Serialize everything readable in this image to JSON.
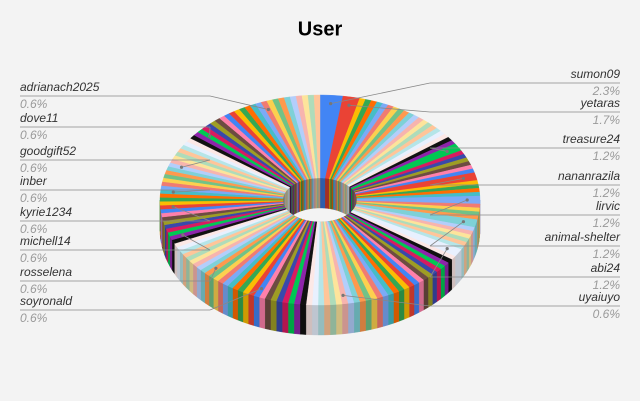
{
  "chart_data": {
    "type": "pie",
    "title": "User",
    "categories": [
      "sumon09",
      "yetaras",
      null,
      null,
      null,
      null,
      null,
      null,
      null,
      null,
      null,
      null,
      null,
      null,
      null,
      null,
      null,
      null,
      null,
      null,
      null,
      null,
      "treasure24",
      null,
      null,
      null,
      null,
      null,
      null,
      "nananrazila",
      null,
      null,
      null,
      null,
      "lirvic",
      null,
      null,
      null,
      null,
      "animal-shelter",
      null,
      null,
      null,
      null,
      null,
      null,
      "abi24",
      null,
      null,
      null,
      null,
      null,
      null,
      null,
      null,
      null,
      null,
      null,
      null,
      null,
      null,
      null,
      null,
      null,
      null,
      null,
      null,
      null,
      null,
      "uyaiuyo",
      null,
      null,
      null,
      null,
      null,
      null,
      null,
      null,
      null,
      null,
      null,
      null,
      null,
      null,
      "soyronald",
      null,
      null,
      null,
      null,
      null,
      null,
      null,
      null,
      null,
      "rosselena",
      null,
      null,
      null,
      null,
      null,
      null,
      null,
      null,
      null,
      null,
      "michell14",
      null,
      null,
      null,
      null,
      null,
      null,
      null,
      "kyrie1234",
      null,
      null,
      null,
      "inber",
      null,
      null,
      null,
      null,
      null,
      null,
      "goodgift52",
      null,
      null,
      null,
      null,
      null,
      null,
      null,
      null,
      null,
      "dove11",
      null,
      null,
      null,
      null,
      null,
      null,
      null,
      null,
      null,
      null,
      null,
      null,
      "adrianach2025",
      null,
      null,
      null,
      null,
      null,
      null,
      null,
      null,
      null
    ],
    "values": [
      2.3,
      1.7,
      0.6,
      0.6,
      0.6,
      0.6,
      0.6,
      0.6,
      0.6,
      0.6,
      0.6,
      0.6,
      0.6,
      0.6,
      0.6,
      0.6,
      0.6,
      0.6,
      0.6,
      0.6,
      0.6,
      0.6,
      1.2,
      0.6,
      0.6,
      0.6,
      0.6,
      0.6,
      0.6,
      1.2,
      0.6,
      0.6,
      0.6,
      0.6,
      1.2,
      0.6,
      0.6,
      0.6,
      0.6,
      1.2,
      0.6,
      0.6,
      0.6,
      0.6,
      0.6,
      0.6,
      1.2,
      0.6,
      0.6,
      0.6,
      0.6,
      0.6,
      0.6,
      0.6,
      0.6,
      0.6,
      0.6,
      0.6,
      0.6,
      0.6,
      0.6,
      0.6,
      0.6,
      0.6,
      0.6,
      0.6,
      0.6,
      0.6,
      0.6,
      0.6,
      0.6,
      0.6,
      0.6,
      0.6,
      0.6,
      0.6,
      0.6,
      0.6,
      0.6,
      0.6,
      0.6,
      0.6,
      0.6,
      0.6,
      0.6,
      0.6,
      0.6,
      0.6,
      0.6,
      0.6,
      0.6,
      0.6,
      0.6,
      0.6,
      0.6,
      0.6,
      0.6,
      0.6,
      0.6,
      0.6,
      0.6,
      0.6,
      0.6,
      0.6,
      0.6,
      0.6,
      0.6,
      0.6,
      0.6,
      0.6,
      0.6,
      0.6,
      0.6,
      0.6,
      0.6,
      0.6,
      0.6,
      0.6,
      0.6,
      0.6,
      0.6,
      0.6,
      0.6,
      0.6,
      0.6,
      0.6,
      0.6,
      0.6,
      0.6,
      0.6,
      0.6,
      0.6,
      0.6,
      0.6,
      0.6,
      0.6,
      0.6,
      0.6,
      0.6,
      0.6,
      0.6,
      0.6,
      0.6,
      0.6,
      0.6,
      0.6,
      0.6,
      0.6,
      0.6,
      0.6,
      0.6,
      0.6,
      0.6,
      0.6,
      0.6,
      0.6,
      0.6
    ],
    "value_labels": [
      "2.3%",
      "1.7%",
      null,
      null,
      null,
      null,
      null,
      null,
      null,
      null,
      null,
      null,
      null,
      null,
      null,
      null,
      null,
      null,
      null,
      null,
      null,
      null,
      "1.2%",
      null,
      null,
      null,
      null,
      null,
      null,
      "1.2%",
      null,
      null,
      null,
      null,
      "1.2%",
      null,
      null,
      null,
      null,
      "1.2%",
      null,
      null,
      null,
      null,
      null,
      null,
      "1.2%",
      null,
      null,
      null,
      null,
      null,
      null,
      null,
      null,
      null,
      null,
      null,
      null,
      null,
      null,
      null,
      null,
      null,
      null,
      null,
      null,
      null,
      null,
      "0.6%",
      null,
      null,
      null,
      null,
      null,
      null,
      null,
      null,
      null,
      null,
      null,
      null,
      null,
      null,
      "0.6%",
      null,
      null,
      null,
      null,
      null,
      null,
      null,
      null,
      null,
      "0.6%",
      null,
      null,
      null,
      null,
      null,
      null,
      null,
      null,
      null,
      null,
      "0.6%",
      null,
      null,
      null,
      null,
      null,
      null,
      null,
      "0.6%",
      null,
      null,
      null,
      "0.6%",
      null,
      null,
      null,
      null,
      null,
      null,
      "0.6%",
      null,
      null,
      null,
      null,
      null,
      null,
      null,
      null,
      null,
      "0.6%",
      null,
      null,
      null,
      null,
      null,
      null,
      null,
      null,
      null,
      null,
      null,
      null,
      "0.6%",
      null,
      null,
      null,
      null,
      null,
      null,
      null,
      null,
      null
    ],
    "colors": [
      "#4285f4",
      "#ea4335",
      "#fbbc04",
      "#34a853",
      "#ff6d01",
      "#46bdc6",
      "#7baaf7",
      "#f07b72",
      "#fcd04f",
      "#71c287",
      "#ff994d",
      "#7ed1d7",
      "#b3cefb",
      "#f7b4ae",
      "#fde49b",
      "#aedcba",
      "#ffc599",
      "#b5e5e8",
      "#e8f0fe",
      "#fce8e6",
      "#111111",
      "#8e24aa",
      "#00c853",
      "#d81b60",
      "#3949ab",
      "#9e9d24",
      "#6d4c41",
      "#ff80ab"
    ]
  }
}
